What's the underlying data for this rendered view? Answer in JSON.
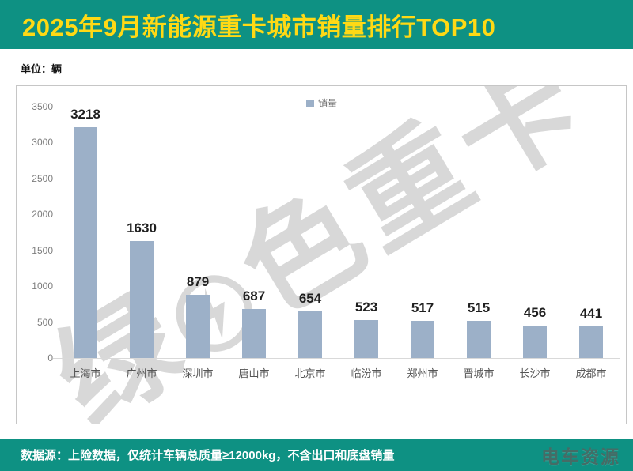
{
  "header": {
    "title": "2025年9月新能源重卡城市销量排行TOP10",
    "bg_color": "#0e9183",
    "title_color": "#ffd915"
  },
  "unit_label": "单位：辆",
  "legend": {
    "label": "销量",
    "swatch_color": "#9cb0c8"
  },
  "watermark": {
    "part1": "绿",
    "part2": "色重卡",
    "color": "#d8d8d8"
  },
  "footer": {
    "note": "数据源：上险数据，仅统计车辆总质量≥12000kg，不含出口和底盘销量",
    "logo": "电车资源"
  },
  "chart_data": {
    "type": "bar",
    "title": "2025年9月新能源重卡城市销量排行TOP10",
    "unit": "辆",
    "legend_label": "销量",
    "legend_position": "top-center",
    "categories": [
      "上海市",
      "广州市",
      "深圳市",
      "唐山市",
      "北京市",
      "临汾市",
      "郑州市",
      "晋城市",
      "长沙市",
      "成都市"
    ],
    "values": [
      3218,
      1630,
      879,
      687,
      654,
      523,
      517,
      515,
      456,
      441
    ],
    "xlabel": "",
    "ylabel": "",
    "ylim": [
      0,
      3500
    ],
    "ytick_step": 500,
    "grid": false,
    "bar_color": "#9cb0c8",
    "value_labels": true
  }
}
